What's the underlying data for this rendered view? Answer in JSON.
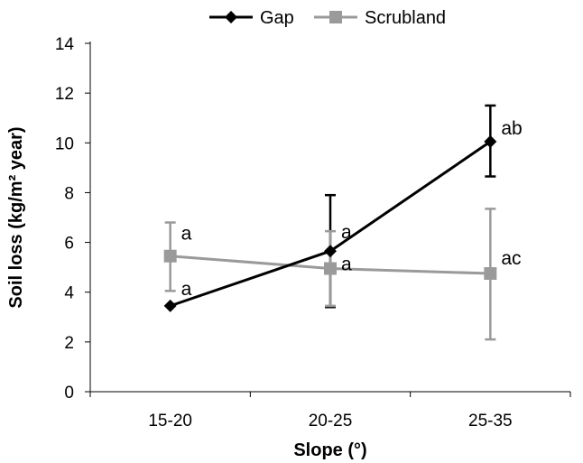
{
  "chart_data": {
    "type": "line",
    "categories": [
      "15-20",
      "20-25",
      "25-35"
    ],
    "xlabel": "Slope (°)",
    "ylabel": "Soil loss (kg/m² year)",
    "ylim": [
      0,
      14
    ],
    "yticks": [
      0,
      2,
      4,
      6,
      8,
      10,
      12,
      14
    ],
    "grid": false,
    "legend_position": "top",
    "series": [
      {
        "name": "Gap",
        "color": "#000000",
        "marker": "diamond",
        "values": [
          3.45,
          5.65,
          10.05
        ],
        "err_low": [
          null,
          3.4,
          8.65
        ],
        "err_high": [
          null,
          7.9,
          11.5
        ],
        "labels": [
          "a",
          "a",
          "ab"
        ]
      },
      {
        "name": "Scrubland",
        "color": "#9a9a9a",
        "marker": "square",
        "values": [
          5.45,
          4.95,
          4.75
        ],
        "err_low": [
          4.05,
          3.45,
          2.1
        ],
        "err_high": [
          6.8,
          6.45,
          7.35
        ],
        "labels": [
          "a",
          "a",
          "ac"
        ]
      }
    ]
  }
}
